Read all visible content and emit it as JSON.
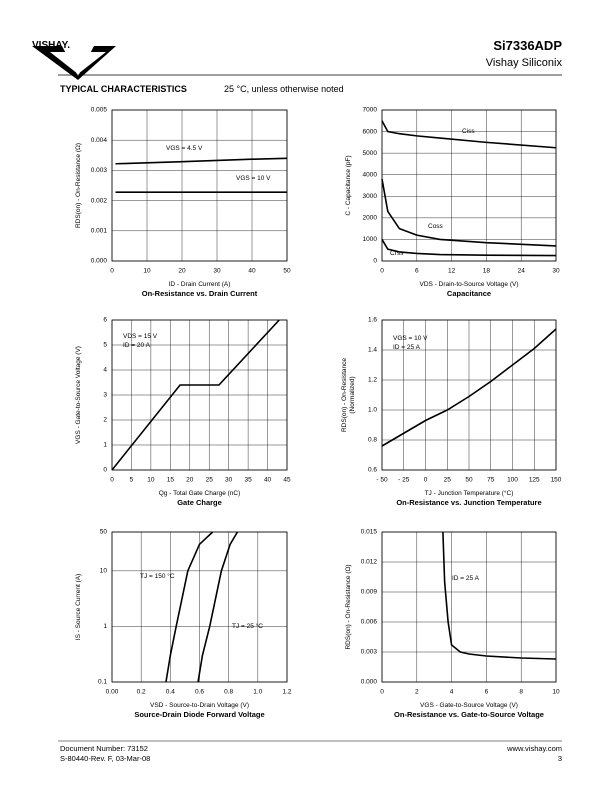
{
  "header": {
    "logo": "VISHAY.",
    "part": "Si7336ADP",
    "company": "Vishay Siliconix",
    "section": "TYPICAL CHARACTERISTICS",
    "condition": "25 °C, unless otherwise noted"
  },
  "footer": {
    "document": "Document Number: 73152",
    "revision": "S-80440-Rev. F, 03-Mar-08",
    "url": "www.vishay.com",
    "page": "3"
  },
  "chart_data": [
    {
      "type": "line",
      "title": "On-Resistance vs. Drain Current",
      "xlabel": "ID - Drain Current (A)",
      "ylabel": "RDS(on) - On-Resistance (Ω)",
      "x": [
        1,
        10,
        20,
        30,
        40,
        50
      ],
      "color": "#000000",
      "grid": true,
      "series": [
        {
          "name": "VGS = 4.5 V",
          "values": [
            0.00322,
            0.00325,
            0.00329,
            0.00333,
            0.00337,
            0.0034
          ]
        },
        {
          "name": "VGS = 10 V",
          "values": [
            0.00228,
            0.00228,
            0.00228,
            0.00228,
            0.00228,
            0.00228
          ]
        }
      ],
      "xlim": [
        0,
        50
      ],
      "xticks": [
        0,
        10,
        20,
        30,
        40,
        50
      ],
      "ylim": [
        0,
        0.005
      ],
      "yticks": [
        {
          "value": 0,
          "label": "0.000"
        },
        {
          "value": 0.001,
          "label": "0.001"
        },
        {
          "value": 0.002,
          "label": "0.002"
        },
        {
          "value": 0.003,
          "label": "0.003"
        },
        {
          "value": 0.004,
          "label": "0.004"
        },
        {
          "value": 0.005,
          "label": "0.005"
        }
      ]
    },
    {
      "type": "line",
      "title": "Capacitance",
      "xlabel": "VDS - Drain-to-Source Voltage (V)",
      "ylabel": "C - Capacitance (pF)",
      "x": [
        0,
        1,
        3,
        6,
        10,
        18,
        30
      ],
      "color": "#000000",
      "grid": true,
      "series": [
        {
          "name": "Ciss",
          "values": [
            6500,
            6000,
            5900,
            5800,
            5700,
            5500,
            5250
          ]
        },
        {
          "name": "Coss",
          "values": [
            3800,
            2300,
            1500,
            1200,
            1000,
            850,
            700
          ]
        },
        {
          "name": "Crss",
          "values": [
            1000,
            550,
            420,
            350,
            300,
            270,
            250
          ]
        }
      ],
      "xlim": [
        0,
        30
      ],
      "xticks": [
        0,
        6,
        12,
        18,
        24,
        30
      ],
      "ylim": [
        0,
        7000
      ],
      "yticks": [
        0,
        1000,
        2000,
        3000,
        4000,
        5000,
        6000,
        7000
      ]
    },
    {
      "type": "line",
      "title": "Gate Charge",
      "xlabel": "Qg - Total Gate Charge (nC)",
      "ylabel": "VGS - Gate-to-Source Voltage (V)",
      "x": [
        0,
        17.5,
        27.5,
        43
      ],
      "color": "#000000",
      "grid": true,
      "series": [
        {
          "values": [
            0,
            3.4,
            3.4,
            6
          ]
        }
      ],
      "annotations": [
        "VDS = 15 V",
        "ID = 20 A"
      ],
      "xlim": [
        0,
        45
      ],
      "xticks": [
        0,
        5,
        10,
        15,
        20,
        25,
        30,
        35,
        40,
        45
      ],
      "ylim": [
        0,
        6
      ],
      "yticks": [
        0,
        1,
        2,
        3,
        4,
        5,
        6
      ]
    },
    {
      "type": "line",
      "title": "On-Resistance vs. Junction Temperature",
      "xlabel": "TJ - Junction Temperature (°C)",
      "ylabel": [
        "RDS(on) - On-Resistance",
        "(Normalized)"
      ],
      "x": [
        -50,
        0,
        25,
        50,
        75,
        100,
        125,
        150
      ],
      "color": "#000000",
      "grid": true,
      "series": [
        {
          "values": [
            0.76,
            0.93,
            1.0,
            1.09,
            1.19,
            1.3,
            1.41,
            1.54
          ]
        }
      ],
      "annotations": [
        "VGS = 10 V",
        "ID = 25 A"
      ],
      "xlim": [
        -50,
        150
      ],
      "xticks": [
        {
          "value": -50,
          "label": "- 50"
        },
        {
          "value": -25,
          "label": "- 25"
        },
        0,
        25,
        50,
        75,
        100,
        125,
        150
      ],
      "ylim": [
        0.6,
        1.6
      ],
      "yticks": [
        0.6,
        0.8,
        {
          "value": 1,
          "label": "1.0"
        },
        1.2,
        1.4,
        1.6
      ]
    },
    {
      "type": "line",
      "title": "Source-Drain Diode Forward Voltage",
      "xlabel": "VSD - Source-to-Drain Voltage (V)",
      "ylabel": "IS - Source Current (A)",
      "color": "#000000",
      "grid": true,
      "log_y": true,
      "series": [
        {
          "name": "TJ = 150 °C",
          "x": [
            0.37,
            0.4,
            0.44,
            0.52,
            0.6,
            0.69
          ],
          "values": [
            0.1,
            0.3,
            1,
            10,
            30,
            50
          ]
        },
        {
          "name": "TJ = 25 °C",
          "x": [
            0.59,
            0.62,
            0.67,
            0.75,
            0.81,
            0.86
          ],
          "values": [
            0.1,
            0.3,
            1,
            10,
            30,
            50
          ]
        }
      ],
      "xlim": [
        0,
        1.2
      ],
      "xticks": [
        {
          "value": 0,
          "label": "0.00"
        },
        0.2,
        0.4,
        0.6,
        0.8,
        {
          "value": 1,
          "label": "1.0"
        },
        1.2
      ],
      "ylim": [
        0.1,
        50
      ],
      "yticks": [
        0.1,
        1,
        10,
        50
      ]
    },
    {
      "type": "line",
      "title": "On-Resistance vs. Gate-to-Source Voltage",
      "xlabel": "VGS - Gate-to-Source Voltage (V)",
      "ylabel": "RDS(on) - On-Resistance (Ω)",
      "x": [
        3.5,
        3.6,
        3.8,
        4,
        4.5,
        5,
        6,
        8,
        10
      ],
      "color": "#000000",
      "grid": true,
      "series": [
        {
          "name": "ID = 25 A",
          "values": [
            0.015,
            0.01,
            0.006,
            0.0037,
            0.003,
            0.0028,
            0.0026,
            0.0024,
            0.0023
          ]
        }
      ],
      "xlim": [
        0,
        10
      ],
      "xticks": [
        0,
        2,
        4,
        6,
        8,
        10
      ],
      "ylim": [
        0,
        0.015
      ],
      "yticks": [
        {
          "value": 0,
          "label": "0.000"
        },
        {
          "value": 0.003,
          "label": "0.003"
        },
        {
          "value": 0.006,
          "label": "0.006"
        },
        {
          "value": 0.009,
          "label": "0.009"
        },
        {
          "value": 0.012,
          "label": "0.012"
        },
        {
          "value": 0.015,
          "label": "0.015"
        }
      ]
    }
  ]
}
